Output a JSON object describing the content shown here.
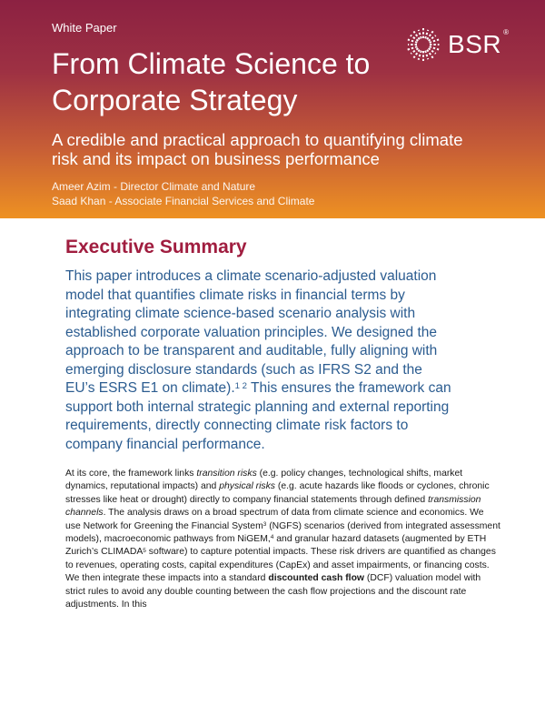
{
  "colors": {
    "header_gradient_top": "#8C2142",
    "header_gradient_bottom": "#EE9122",
    "heading_accent": "#A01D3F",
    "lead_text": "#2B5C90",
    "header_text": "#FFFFFF",
    "detail_text": "#1A1A1A"
  },
  "header": {
    "eyebrow": "White Paper",
    "logo": {
      "text": "BSR",
      "mark": "®",
      "icon": "starburst"
    },
    "title": "From Climate Science to Corporate Strategy",
    "subtitle": "A credible and practical approach to quantifying climate risk and its impact on business performance",
    "authors": [
      "Ameer Azim - Director Climate and Nature",
      "Saad Khan - Associate Financial Services and Climate"
    ]
  },
  "body": {
    "heading": "Executive Summary",
    "lead_paragraph": [
      {
        "text": "This paper introduces a climate scenario-adjusted valuation model that quantifies climate risks in financial terms by integrating climate science-based scenario analysis with established corporate valuation principles. We designed the approach to be transparent and auditable, fully aligning with emerging disclosure standards (such as IFRS S2 and the EU’s ESRS E1 on climate)."
      },
      {
        "text": "1 2",
        "style": "sup"
      },
      {
        "text": " This ensures the framework can support both internal strategic planning and external reporting requirements, directly connecting climate risk factors to company financial performance."
      }
    ],
    "detail_paragraph": [
      {
        "text": "At its core, the framework links "
      },
      {
        "text": "transition risks",
        "style": "italic"
      },
      {
        "text": " (e.g. policy changes, technological shifts, market dynamics, reputational impacts) and "
      },
      {
        "text": "physical risks",
        "style": "italic"
      },
      {
        "text": " (e.g. acute hazards like floods or cyclones, chronic stresses like heat or drought) directly to company financial statements through defined "
      },
      {
        "text": "transmission channels",
        "style": "italic"
      },
      {
        "text": ". The analysis draws on a broad spectrum of data from climate science and economics. We use Network for Greening the Financial System"
      },
      {
        "text": "3",
        "style": "sup"
      },
      {
        "text": " (NGFS) scenarios (derived from integrated assessment models), macroeconomic pathways from NiGEM,"
      },
      {
        "text": "4",
        "style": "sup"
      },
      {
        "text": " and granular hazard datasets (augmented by ETH Zurich’s CLIMADA"
      },
      {
        "text": "5",
        "style": "sup"
      },
      {
        "text": " software) to capture potential impacts. These risk drivers are quantified as changes to revenues, operating costs, capital expenditures (CapEx) and asset impairments, or financing costs. We then integrate these impacts into a standard "
      },
      {
        "text": "discounted cash flow",
        "style": "bold"
      },
      {
        "text": " (DCF) valuation model with strict rules to avoid any double counting between the cash flow projections and the discount rate adjustments. In this"
      }
    ]
  }
}
